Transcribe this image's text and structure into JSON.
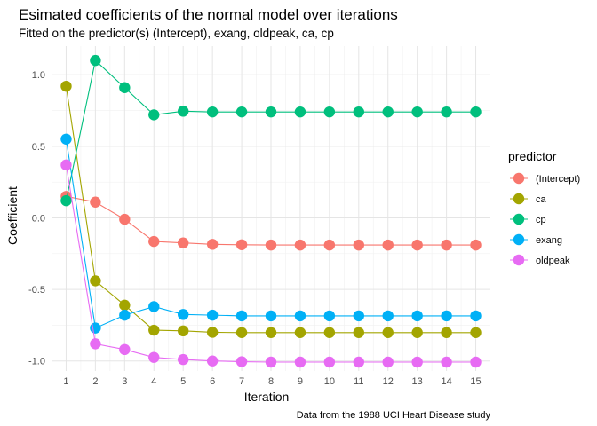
{
  "chart_data": {
    "type": "line",
    "title": "Esimated coefficients of the normal model over iterations",
    "subtitle": "Fitted on the predictor(s) (Intercept), exang, oldpeak, ca, cp",
    "xlabel": "Iteration",
    "ylabel": "Coefficient",
    "caption": "Data from the 1988 UCI Heart Disease study",
    "x": [
      1,
      2,
      3,
      4,
      5,
      6,
      7,
      8,
      9,
      10,
      11,
      12,
      13,
      14,
      15
    ],
    "xlim": [
      0.5,
      15.5
    ],
    "ylim": [
      -1.07,
      1.2
    ],
    "y_ticks": [
      -1.0,
      -0.5,
      0.0,
      0.5,
      1.0
    ],
    "y_tick_labels": [
      "-1.0",
      "-0.5",
      "0.0",
      "0.5",
      "1.0"
    ],
    "grid": true,
    "legend": {
      "title": "predictor",
      "position": "right"
    },
    "series": [
      {
        "name": "(Intercept)",
        "color": "#F8766D",
        "values": [
          0.15,
          0.11,
          -0.01,
          -0.165,
          -0.175,
          -0.185,
          -0.188,
          -0.19,
          -0.19,
          -0.19,
          -0.19,
          -0.19,
          -0.19,
          -0.19,
          -0.19
        ]
      },
      {
        "name": "ca",
        "color": "#A3A500",
        "values": [
          0.92,
          -0.44,
          -0.61,
          -0.785,
          -0.79,
          -0.8,
          -0.802,
          -0.802,
          -0.802,
          -0.802,
          -0.802,
          -0.802,
          -0.802,
          -0.802,
          -0.802
        ]
      },
      {
        "name": "cp",
        "color": "#00BF7D",
        "values": [
          0.12,
          1.1,
          0.91,
          0.72,
          0.745,
          0.74,
          0.74,
          0.74,
          0.74,
          0.74,
          0.74,
          0.74,
          0.74,
          0.74,
          0.74
        ]
      },
      {
        "name": "exang",
        "color": "#00B0F6",
        "values": [
          0.55,
          -0.77,
          -0.68,
          -0.62,
          -0.675,
          -0.68,
          -0.685,
          -0.685,
          -0.685,
          -0.685,
          -0.685,
          -0.685,
          -0.685,
          -0.685,
          -0.685
        ]
      },
      {
        "name": "oldpeak",
        "color": "#E76BF3",
        "values": [
          0.37,
          -0.88,
          -0.92,
          -0.975,
          -0.99,
          -1.0,
          -1.005,
          -1.008,
          -1.008,
          -1.008,
          -1.008,
          -1.008,
          -1.008,
          -1.008,
          -1.008
        ]
      }
    ]
  }
}
